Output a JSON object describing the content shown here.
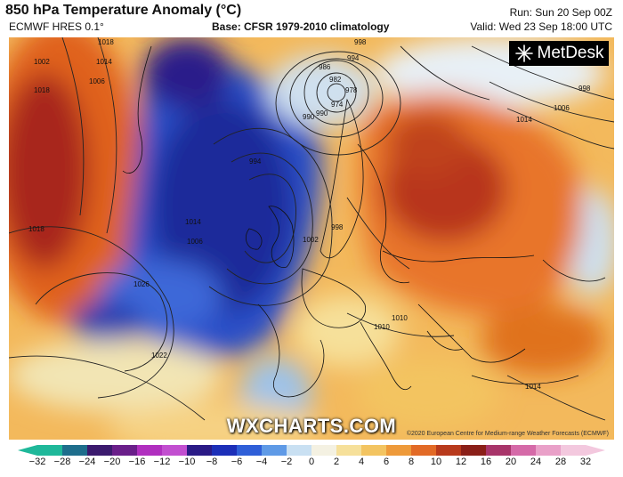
{
  "header": {
    "title": "850 hPa Temperature Anomaly (°C)",
    "model": "ECMWF HRES 0.1°",
    "base": "Base: CFSR 1979-2010 climatology",
    "run": "Run: Sun 20 Sep 00Z",
    "valid": "Valid: Wed 23 Sep 18:00 UTC"
  },
  "logo": {
    "text": "MetDesk"
  },
  "watermark": "WXCHARTS.COM",
  "copyright": "©2020 European Centre for Medium-range Weather Forecasts (ECMWF)",
  "colorbar": {
    "ticks": [
      "−32",
      "−28",
      "−24",
      "−20",
      "−16",
      "−12",
      "−10",
      "−8",
      "−6",
      "−4",
      "−2",
      "0",
      "2",
      "4",
      "6",
      "8",
      "10",
      "12",
      "16",
      "20",
      "24",
      "28",
      "32"
    ],
    "colors": [
      "#1fb89a",
      "#1e6e8c",
      "#3b1a6e",
      "#6a1f8a",
      "#b02fbf",
      "#c24fd0",
      "#2a1a86",
      "#1c2fb8",
      "#2f5fd8",
      "#5f9ae6",
      "#c9e0f2",
      "#f4f1e2",
      "#f6e09a",
      "#f3c461",
      "#ee9a3a",
      "#e26a26",
      "#b83a1c",
      "#8a1f18",
      "#a8356a",
      "#d56aa8",
      "#e9a0c8",
      "#f3c8de"
    ]
  },
  "isobars": [
    "1018",
    "1014",
    "1006",
    "1002",
    "998",
    "994",
    "990",
    "986",
    "982",
    "978",
    "974",
    "1022",
    "1026",
    "1018",
    "1014",
    "1010",
    "1006",
    "1002",
    "998",
    "994",
    "990",
    "1014",
    "1010",
    "998",
    "1006",
    "1014",
    "1018"
  ]
}
